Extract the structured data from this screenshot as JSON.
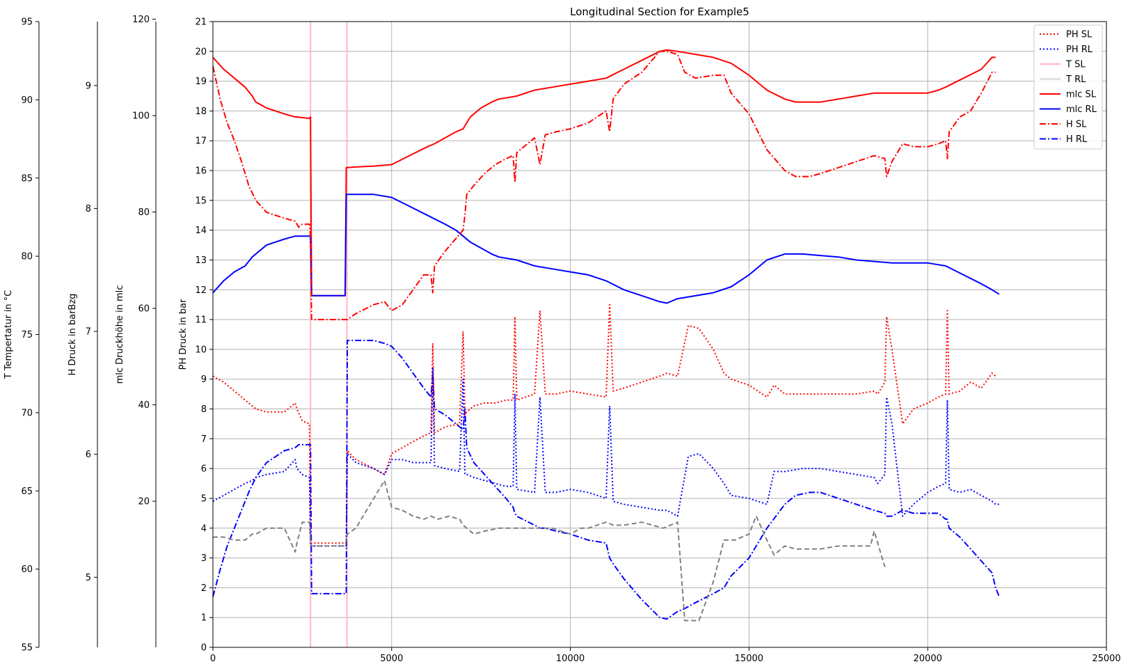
{
  "chart_data": {
    "type": "line",
    "title": "Longitudinal Section for Example5",
    "xlim": [
      0,
      25000
    ],
    "x_ticks": [
      "0",
      "5000",
      "10000",
      "15000",
      "20000",
      "25000"
    ],
    "grid": true,
    "legend_position": "top-right",
    "axes": [
      {
        "key": "ph",
        "label": "PH Druck in bar",
        "ylim": [
          0,
          21
        ],
        "ticks": [
          "0",
          "1",
          "2",
          "3",
          "4",
          "5",
          "6",
          "7",
          "8",
          "9",
          "10",
          "11",
          "12",
          "13",
          "14",
          "15",
          "16",
          "17",
          "18",
          "19",
          "20",
          "21"
        ]
      },
      {
        "key": "mlc",
        "label": "mlc Druckhöhe in mlc",
        "ylim": [
          -10.3,
          119.5
        ],
        "ticks": [
          "20",
          "40",
          "60",
          "80",
          "100",
          "120"
        ]
      },
      {
        "key": "h",
        "label": "H Druck in barBzg",
        "ylim": [
          4.43,
          9.52
        ],
        "ticks": [
          "5",
          "6",
          "7",
          "8",
          "9"
        ]
      },
      {
        "key": "t",
        "label": "T Tempertatur in °C",
        "ylim": [
          55,
          95
        ],
        "ticks": [
          "55",
          "60",
          "65",
          "70",
          "75",
          "80",
          "85",
          "90",
          "95"
        ]
      }
    ],
    "legend": [
      {
        "name": "PH SL",
        "color": "#ff0000",
        "style": "dotted"
      },
      {
        "name": "PH RL",
        "color": "#0000ff",
        "style": "dotted"
      },
      {
        "name": "T SL",
        "color": "#ffb6c1",
        "style": "solid"
      },
      {
        "name": "T RL",
        "color": "#d3d3d3",
        "style": "solid"
      },
      {
        "name": "mlc SL",
        "color": "#ff0000",
        "style": "solid"
      },
      {
        "name": "mlc RL",
        "color": "#0000ff",
        "style": "solid"
      },
      {
        "name": "H SL",
        "color": "#ff0000",
        "style": "dashdot"
      },
      {
        "name": "H RL",
        "color": "#0000ff",
        "style": "dashdot"
      }
    ],
    "series": [
      {
        "axis": "ph",
        "color": "#ff0000",
        "style": "solid",
        "x": [
          0,
          300,
          600,
          900,
          1100,
          1200,
          1500,
          2000,
          2300,
          2350,
          2700,
          2730,
          2760,
          3700,
          3730,
          3760,
          4000,
          4500,
          5000,
          5500,
          6000,
          6200,
          6500,
          6800,
          7000,
          7200,
          7500,
          7800,
          8000,
          8500,
          9000,
          9500,
          10000,
          10500,
          11000,
          11500,
          12000,
          12500,
          12700,
          13000,
          14000,
          14500,
          15000,
          15500,
          16000,
          16300,
          16500,
          17000,
          17500,
          18000,
          18500,
          19000,
          19500,
          20000,
          20300,
          20500,
          21000,
          21500,
          21800,
          21900
        ],
        "y": [
          19.8,
          19.4,
          19.1,
          18.8,
          18.5,
          18.3,
          18.1,
          17.9,
          17.8,
          17.8,
          17.75,
          17.8,
          11.8,
          11.8,
          16.1,
          16.1,
          16.12,
          16.15,
          16.2,
          16.5,
          16.8,
          16.9,
          17.1,
          17.3,
          17.4,
          17.8,
          18.1,
          18.3,
          18.4,
          18.5,
          18.7,
          18.8,
          18.9,
          19.0,
          19.1,
          19.4,
          19.7,
          20.0,
          20.05,
          20.0,
          19.8,
          19.6,
          19.2,
          18.7,
          18.4,
          18.3,
          18.3,
          18.3,
          18.4,
          18.5,
          18.6,
          18.6,
          18.6,
          18.6,
          18.7,
          18.8,
          19.1,
          19.4,
          19.8,
          19.8
        ]
      },
      {
        "axis": "ph",
        "color": "#0000ff",
        "style": "solid",
        "x": [
          0,
          300,
          600,
          900,
          1100,
          1200,
          1500,
          2000,
          2300,
          2350,
          2700,
          2730,
          2760,
          3700,
          3730,
          3760,
          4000,
          4500,
          5000,
          5500,
          6000,
          6500,
          6800,
          7000,
          7200,
          7500,
          7800,
          8000,
          8500,
          9000,
          9500,
          10000,
          10500,
          11000,
          11500,
          12000,
          12500,
          12700,
          13000,
          14000,
          14500,
          15000,
          15500,
          16000,
          16300,
          16500,
          17000,
          17500,
          18000,
          18500,
          19000,
          19500,
          20000,
          20500,
          21000,
          21500,
          21800,
          22000
        ],
        "y": [
          11.9,
          12.3,
          12.6,
          12.8,
          13.1,
          13.2,
          13.5,
          13.7,
          13.8,
          13.8,
          13.8,
          13.8,
          11.8,
          11.8,
          15.2,
          15.2,
          15.2,
          15.2,
          15.1,
          14.8,
          14.5,
          14.2,
          14.0,
          13.8,
          13.6,
          13.4,
          13.2,
          13.1,
          13.0,
          12.8,
          12.7,
          12.6,
          12.5,
          12.3,
          12.0,
          11.8,
          11.6,
          11.55,
          11.7,
          11.9,
          12.1,
          12.5,
          13.0,
          13.2,
          13.2,
          13.2,
          13.15,
          13.1,
          13.0,
          12.95,
          12.9,
          12.9,
          12.9,
          12.8,
          12.5,
          12.2,
          12.0,
          11.85
        ]
      },
      {
        "axis": "ph",
        "color": "#ff0000",
        "style": "dashdot",
        "x": [
          0,
          200,
          400,
          600,
          800,
          1000,
          1200,
          1500,
          2000,
          2300,
          2400,
          2500,
          2700,
          2730,
          2760,
          3700,
          3730,
          3760,
          4000,
          4500,
          4800,
          5000,
          5300,
          5600,
          5900,
          6100,
          6150,
          6200,
          6500,
          7000,
          7050,
          7100,
          7300,
          7600,
          7900,
          8200,
          8400,
          8450,
          8500,
          9000,
          9150,
          9300,
          9600,
          10000,
          10500,
          11000,
          11100,
          11200,
          11500,
          12000,
          12500,
          12700,
          13000,
          13200,
          13500,
          14000,
          14300,
          14500,
          15000,
          15500,
          16000,
          16300,
          16700,
          17000,
          17500,
          18000,
          18500,
          18800,
          18850,
          19000,
          19300,
          19600,
          20000,
          20300,
          20500,
          20550,
          20600,
          20900,
          21200,
          21500,
          21800,
          21900
        ],
        "y": [
          19.5,
          18.4,
          17.6,
          17.0,
          16.3,
          15.5,
          15.0,
          14.6,
          14.4,
          14.3,
          14.1,
          14.2,
          14.2,
          13.8,
          11.0,
          11.0,
          11.0,
          11.0,
          11.2,
          11.5,
          11.6,
          11.3,
          11.5,
          12.0,
          12.5,
          12.5,
          11.9,
          12.8,
          13.3,
          14.0,
          14.5,
          15.2,
          15.5,
          15.9,
          16.2,
          16.4,
          16.5,
          15.6,
          16.6,
          17.1,
          16.2,
          17.2,
          17.3,
          17.4,
          17.6,
          18.0,
          17.3,
          18.4,
          18.9,
          19.3,
          20.0,
          20.0,
          19.9,
          19.3,
          19.1,
          19.2,
          19.2,
          18.6,
          17.9,
          16.7,
          16.0,
          15.8,
          15.8,
          15.9,
          16.1,
          16.3,
          16.5,
          16.4,
          15.8,
          16.3,
          16.9,
          16.8,
          16.8,
          16.9,
          17.0,
          16.4,
          17.3,
          17.8,
          18.0,
          18.6,
          19.3,
          19.3
        ]
      },
      {
        "axis": "ph",
        "color": "#0000ff",
        "style": "dashdot",
        "x": [
          0,
          200,
          400,
          600,
          800,
          1000,
          1200,
          1500,
          2000,
          2300,
          2400,
          2500,
          2700,
          2730,
          2760,
          3700,
          3730,
          3760,
          4000,
          4500,
          4800,
          5000,
          5300,
          5600,
          5900,
          6100,
          6150,
          6200,
          6500,
          6800,
          7000,
          7050,
          7100,
          7300,
          7600,
          7900,
          8200,
          8400,
          8450,
          8500,
          9000,
          9150,
          9300,
          9600,
          10000,
          10500,
          11000,
          11100,
          11200,
          11500,
          12000,
          12500,
          12700,
          13000,
          13200,
          13500,
          14000,
          14300,
          14500,
          15000,
          15500,
          16000,
          16300,
          16700,
          17000,
          17500,
          18000,
          18500,
          18800,
          18850,
          19000,
          19300,
          19600,
          20000,
          20300,
          20500,
          20550,
          20600,
          20900,
          21200,
          21500,
          21800,
          21900,
          22000
        ],
        "y": [
          1.7,
          2.6,
          3.4,
          4.0,
          4.6,
          5.2,
          5.7,
          6.2,
          6.6,
          6.7,
          6.8,
          6.8,
          6.8,
          6.8,
          1.8,
          1.8,
          1.8,
          10.3,
          10.3,
          10.3,
          10.2,
          10.1,
          9.7,
          9.2,
          8.7,
          8.4,
          9.2,
          8.0,
          7.8,
          7.5,
          7.3,
          8.0,
          6.7,
          6.2,
          5.8,
          5.4,
          5.0,
          4.7,
          4.5,
          4.4,
          4.1,
          4.0,
          4.0,
          3.9,
          3.8,
          3.6,
          3.5,
          3.0,
          2.8,
          2.3,
          1.6,
          1.0,
          0.95,
          1.2,
          1.3,
          1.5,
          1.8,
          2.0,
          2.4,
          3.0,
          4.0,
          4.8,
          5.1,
          5.2,
          5.2,
          5.0,
          4.8,
          4.6,
          4.5,
          4.4,
          4.4,
          4.6,
          4.5,
          4.5,
          4.5,
          4.3,
          4.3,
          4.0,
          3.7,
          3.3,
          2.9,
          2.5,
          2.0,
          1.7
        ]
      },
      {
        "axis": "ph",
        "color": "#ff0000",
        "style": "dotted",
        "x": [
          0,
          300,
          600,
          900,
          1100,
          1200,
          1500,
          2000,
          2300,
          2350,
          2500,
          2700,
          2730,
          2760,
          3700,
          3730,
          3760,
          4000,
          4500,
          4800,
          5000,
          5300,
          5600,
          5900,
          6100,
          6150,
          6200,
          6500,
          6900,
          7000,
          7050,
          7100,
          7300,
          7600,
          7900,
          8200,
          8400,
          8450,
          8500,
          9000,
          9150,
          9300,
          9600,
          10000,
          10500,
          11000,
          11100,
          11200,
          11500,
          12000,
          12500,
          12700,
          13000,
          13300,
          13600,
          14000,
          14300,
          14500,
          15000,
          15500,
          15700,
          16000,
          16500,
          17000,
          17500,
          18000,
          18500,
          18600,
          18800,
          18850,
          19000,
          19300,
          19600,
          20000,
          20300,
          20500,
          20550,
          20600,
          20900,
          21200,
          21500,
          21800,
          21900
        ],
        "y": [
          9.1,
          8.9,
          8.6,
          8.3,
          8.1,
          8.0,
          7.9,
          7.9,
          8.2,
          8.0,
          7.6,
          7.5,
          3.5,
          3.5,
          3.5,
          3.5,
          6.6,
          6.3,
          6.0,
          5.8,
          6.5,
          6.7,
          6.9,
          7.1,
          7.2,
          10.2,
          7.2,
          7.4,
          7.5,
          10.6,
          7.8,
          7.9,
          8.1,
          8.2,
          8.2,
          8.3,
          8.3,
          11.1,
          8.3,
          8.5,
          11.3,
          8.5,
          8.5,
          8.6,
          8.5,
          8.4,
          11.5,
          8.6,
          8.7,
          8.9,
          9.1,
          9.2,
          9.1,
          10.8,
          10.7,
          10.0,
          9.2,
          9.0,
          8.8,
          8.4,
          8.8,
          8.5,
          8.5,
          8.5,
          8.5,
          8.5,
          8.6,
          8.5,
          8.9,
          11.1,
          10.0,
          7.5,
          8.0,
          8.2,
          8.4,
          8.5,
          11.3,
          8.5,
          8.6,
          8.9,
          8.7,
          9.2,
          9.1
        ]
      },
      {
        "axis": "ph",
        "color": "#0000ff",
        "style": "dotted",
        "x": [
          0,
          300,
          600,
          900,
          1100,
          1200,
          1500,
          2000,
          2300,
          2350,
          2500,
          2700,
          2730,
          2760,
          3700,
          3730,
          3760,
          4000,
          4500,
          4800,
          5000,
          5300,
          5600,
          5900,
          6100,
          6150,
          6200,
          6500,
          6900,
          7000,
          7050,
          7100,
          7300,
          7600,
          7900,
          8200,
          8400,
          8450,
          8500,
          9000,
          9150,
          9300,
          9600,
          10000,
          10500,
          11000,
          11100,
          11200,
          11500,
          12000,
          12500,
          12700,
          13000,
          13300,
          13600,
          14000,
          14300,
          14500,
          15000,
          15500,
          15700,
          16000,
          16500,
          17000,
          17500,
          18000,
          18500,
          18600,
          18800,
          18850,
          19000,
          19300,
          19600,
          20000,
          20300,
          20500,
          20550,
          20600,
          20900,
          21200,
          21500,
          21800,
          21900,
          22000
        ],
        "y": [
          4.9,
          5.1,
          5.3,
          5.5,
          5.6,
          5.7,
          5.8,
          5.9,
          6.3,
          6.0,
          5.8,
          5.7,
          3.4,
          3.4,
          3.4,
          3.4,
          6.5,
          6.2,
          6.0,
          5.8,
          6.3,
          6.3,
          6.2,
          6.2,
          6.2,
          9.4,
          6.1,
          6.0,
          5.9,
          9.0,
          5.8,
          5.8,
          5.7,
          5.6,
          5.5,
          5.4,
          5.4,
          8.5,
          5.3,
          5.2,
          8.4,
          5.2,
          5.2,
          5.3,
          5.2,
          5.0,
          8.1,
          4.9,
          4.8,
          4.7,
          4.6,
          4.6,
          4.4,
          6.4,
          6.5,
          6.0,
          5.5,
          5.1,
          5.0,
          4.8,
          5.9,
          5.9,
          6.0,
          6.0,
          5.9,
          5.8,
          5.7,
          5.5,
          5.8,
          8.4,
          7.5,
          4.4,
          4.8,
          5.2,
          5.4,
          5.5,
          8.3,
          5.3,
          5.2,
          5.3,
          5.1,
          4.9,
          4.8,
          4.8
        ]
      },
      {
        "axis": "ph",
        "color": "#808080",
        "style": "dashed",
        "x": [
          0,
          300,
          600,
          900,
          1100,
          1200,
          1500,
          2000,
          2300,
          2350,
          2500,
          2700,
          2730,
          2760,
          3700,
          3730,
          3760,
          4000,
          4500,
          4800,
          5000,
          5300,
          5600,
          5900,
          6100,
          6300,
          6600,
          6900,
          7000,
          7300,
          7600,
          8000,
          8500,
          9000,
          9500,
          10000,
          10300,
          10500,
          11000,
          11200,
          11500,
          12000,
          12600,
          13000,
          13200,
          13400,
          13600,
          14000,
          14300,
          14600,
          15000,
          15200,
          15500,
          15700,
          16000,
          16300,
          16500,
          17000,
          17500,
          18000,
          18400,
          18500,
          18800
        ],
        "y": [
          3.7,
          3.7,
          3.6,
          3.6,
          3.8,
          3.8,
          4.0,
          4.0,
          3.2,
          3.5,
          4.2,
          4.2,
          3.5,
          3.4,
          3.4,
          3.6,
          3.8,
          4.0,
          5.0,
          5.6,
          4.7,
          4.6,
          4.4,
          4.3,
          4.4,
          4.3,
          4.4,
          4.3,
          4.1,
          3.8,
          3.9,
          4.0,
          4.0,
          4.0,
          4.0,
          3.8,
          4.0,
          4.0,
          4.2,
          4.1,
          4.1,
          4.2,
          4.0,
          4.2,
          0.9,
          0.9,
          0.9,
          2.2,
          3.6,
          3.6,
          3.8,
          4.4,
          3.6,
          3.1,
          3.4,
          3.3,
          3.3,
          3.3,
          3.4,
          3.4,
          3.4,
          3.9,
          2.7
        ]
      }
    ],
    "vertical_lines": [
      {
        "x": 2730,
        "color": "#ffb6c1"
      },
      {
        "x": 3750,
        "color": "#ffb6c1"
      }
    ]
  }
}
